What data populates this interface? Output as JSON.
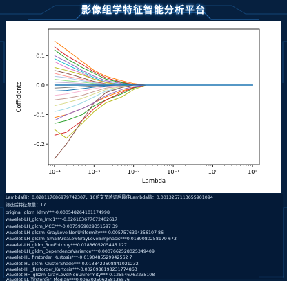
{
  "app": {
    "title": "影像组学特征智能分析平台"
  },
  "theme": {
    "background": "#06203f",
    "accent": "#3aa0ff",
    "text": "#d8e6f5",
    "circuit": "#1d5c9a"
  },
  "icons": [
    "circuit-pattern-icon"
  ],
  "results": {
    "lambda_line": "Lambda值：0.028117686979742307，10倍交叉验证后最佳Lambda值：0.0013257113655901094",
    "count_line": "筛选后特征数量：17",
    "features": [
      "original_glcm_Idmn***-0.000548264101174998",
      "wavelet-LH_glcm_Imc1***-0.026163677672402617",
      "wavelet-LH_glcm_MCC***-0.0075959829351597 39",
      "wavelet-LH_glszm_GrayLevelNonUniformity***-0.0057576394356107 86",
      "wavelet-LH_glszm_SmallAreaLowGrayLevelEmphasis***0.0189080258179 673",
      "wavelet-LH_glrlm_RunEntropy***0.0183605205445 127",
      "wavelet-LH_gldm_DependenceVariance***0.0007662528025349409",
      "wavelet-HL_firstorder_Kurtosis***-0.0190485529942562 7",
      "wavelet-HL_glcm_ClusterShade***-0.0138422608841021232",
      "wavelet-HH_firstorder_Kurtosis***-0.0020988198231774863",
      "wavelet-HH_glszm_GrayLevelNonUniformity***-0.125546763235108",
      "wavelet-LL_firstorder_Median***0.006302506258136576"
    ]
  },
  "chart_data": {
    "type": "line",
    "title": "",
    "xlabel": "Lambda",
    "ylabel": "Cofficients",
    "xscale": "log",
    "xlim": [
      7e-05,
      15
    ],
    "ylim": [
      -0.27,
      0.19
    ],
    "x_ticks": [
      0.0001,
      0.001,
      0.01,
      0.1,
      1,
      10
    ],
    "x_tick_labels": [
      "10⁻⁴",
      "10⁻³",
      "10⁻²",
      "10⁻¹",
      "10⁰",
      "10¹"
    ],
    "y_ticks": [
      -0.2,
      -0.1,
      0.0,
      0.1
    ],
    "y_tick_labels": [
      "-0.2",
      "-0.1",
      "0.0",
      "0.1"
    ],
    "grid": false,
    "x": [
      0.0001,
      0.0002,
      0.0005,
      0.001,
      0.002,
      0.005,
      0.01,
      0.02,
      0.05,
      0.1,
      1,
      10
    ],
    "series": [
      {
        "color": "#ff7f0e",
        "values": [
          0.15,
          0.12,
          0.08,
          0.05,
          0.03,
          0.015,
          0.005,
          0,
          0,
          0,
          0,
          0
        ]
      },
      {
        "color": "#d62728",
        "values": [
          0.13,
          0.1,
          0.07,
          0.045,
          0.025,
          0.01,
          0.002,
          0,
          0,
          0,
          0,
          0
        ]
      },
      {
        "color": "#2ca02c",
        "values": [
          0.12,
          0.09,
          0.06,
          0.04,
          0.02,
          0.008,
          0,
          0,
          0,
          0,
          0,
          0
        ]
      },
      {
        "color": "#9467bd",
        "values": [
          0.1,
          0.08,
          0.05,
          0.03,
          0.015,
          0.005,
          0,
          0,
          0,
          0,
          0,
          0
        ]
      },
      {
        "color": "#17becf",
        "values": [
          0.09,
          0.07,
          0.045,
          0.025,
          0.01,
          0.002,
          0,
          0,
          0,
          0,
          0,
          0
        ]
      },
      {
        "color": "#e377c2",
        "values": [
          0.08,
          0.06,
          0.04,
          0.02,
          0.01,
          0,
          0,
          0,
          0,
          0,
          0,
          0
        ]
      },
      {
        "color": "#bcbd22",
        "values": [
          0.06,
          0.05,
          0.035,
          0.02,
          0.008,
          0,
          0,
          0,
          0,
          0,
          0,
          0
        ]
      },
      {
        "color": "#8c564b",
        "values": [
          0.05,
          0.04,
          0.025,
          0.012,
          0.004,
          0,
          0,
          0,
          0,
          0,
          0,
          0
        ]
      },
      {
        "color": "#ff9896",
        "values": [
          0.04,
          0.03,
          0.02,
          0.01,
          0.003,
          0,
          0,
          0,
          0,
          0,
          0,
          0
        ]
      },
      {
        "color": "#aec7e8",
        "values": [
          0.03,
          0.025,
          0.015,
          0.008,
          0.002,
          0,
          0,
          0,
          0,
          0,
          0,
          0
        ]
      },
      {
        "color": "#98df8a",
        "values": [
          0.02,
          0.015,
          0.01,
          0.005,
          0.001,
          0,
          0,
          0,
          0,
          0,
          0,
          0
        ]
      },
      {
        "color": "#c5b0d5",
        "values": [
          0.01,
          0.008,
          0.005,
          0.002,
          0,
          0,
          0,
          0,
          0,
          0,
          0,
          0
        ]
      },
      {
        "color": "#7f7f7f",
        "values": [
          -0.01,
          -0.008,
          -0.005,
          -0.003,
          -0.001,
          0,
          0,
          0,
          0,
          0,
          0,
          0
        ]
      },
      {
        "color": "#1f77b4",
        "values": [
          -0.02,
          -0.018,
          -0.012,
          -0.007,
          -0.003,
          0,
          0,
          0,
          0,
          0,
          0,
          0
        ]
      },
      {
        "color": "#f7b6d2",
        "values": [
          -0.035,
          -0.03,
          -0.02,
          -0.012,
          -0.005,
          -0.001,
          0,
          0,
          0,
          0,
          0,
          0
        ]
      },
      {
        "color": "#c49c94",
        "values": [
          -0.05,
          -0.045,
          -0.035,
          -0.022,
          -0.01,
          -0.003,
          0,
          0,
          0,
          0,
          0,
          0
        ]
      },
      {
        "color": "#dbdb8d",
        "values": [
          -0.07,
          -0.06,
          -0.045,
          -0.03,
          -0.015,
          -0.005,
          0,
          0,
          0,
          0,
          0,
          0
        ]
      },
      {
        "color": "#9edae5",
        "values": [
          -0.09,
          -0.08,
          -0.06,
          -0.04,
          -0.02,
          -0.008,
          0,
          0,
          0,
          0,
          0,
          0
        ]
      },
      {
        "color": "#ff7f0e",
        "values": [
          -0.11,
          -0.1,
          -0.08,
          -0.06,
          -0.04,
          -0.02,
          -0.008,
          0,
          0,
          0,
          0,
          0
        ]
      },
      {
        "color": "#2ca02c",
        "values": [
          -0.13,
          -0.12,
          -0.1,
          -0.07,
          -0.05,
          -0.03,
          -0.01,
          0,
          0,
          0,
          0,
          0
        ]
      },
      {
        "color": "#bcbd22",
        "values": [
          -0.15,
          -0.18,
          -0.13,
          -0.09,
          -0.06,
          -0.04,
          -0.015,
          0,
          0,
          0,
          0,
          0
        ]
      },
      {
        "color": "#d62728",
        "values": [
          -0.17,
          -0.16,
          -0.12,
          -0.08,
          -0.05,
          -0.025,
          -0.008,
          0,
          0,
          0,
          0,
          0
        ]
      },
      {
        "color": "#8c564b",
        "values": [
          -0.25,
          -0.2,
          -0.12,
          -0.06,
          -0.025,
          -0.008,
          0,
          0,
          0,
          0,
          0,
          0
        ]
      },
      {
        "color": "#9467bd",
        "values": [
          -0.12,
          -0.1,
          -0.08,
          -0.06,
          -0.035,
          -0.015,
          -0.005,
          0,
          0,
          0,
          0,
          0
        ]
      },
      {
        "color": "#1f77b4",
        "values": [
          0.0,
          0.0,
          0.0,
          0.0,
          0.0,
          0.0,
          0.0,
          0.0,
          0.0,
          0.0,
          0.0,
          0.0
        ]
      }
    ]
  }
}
